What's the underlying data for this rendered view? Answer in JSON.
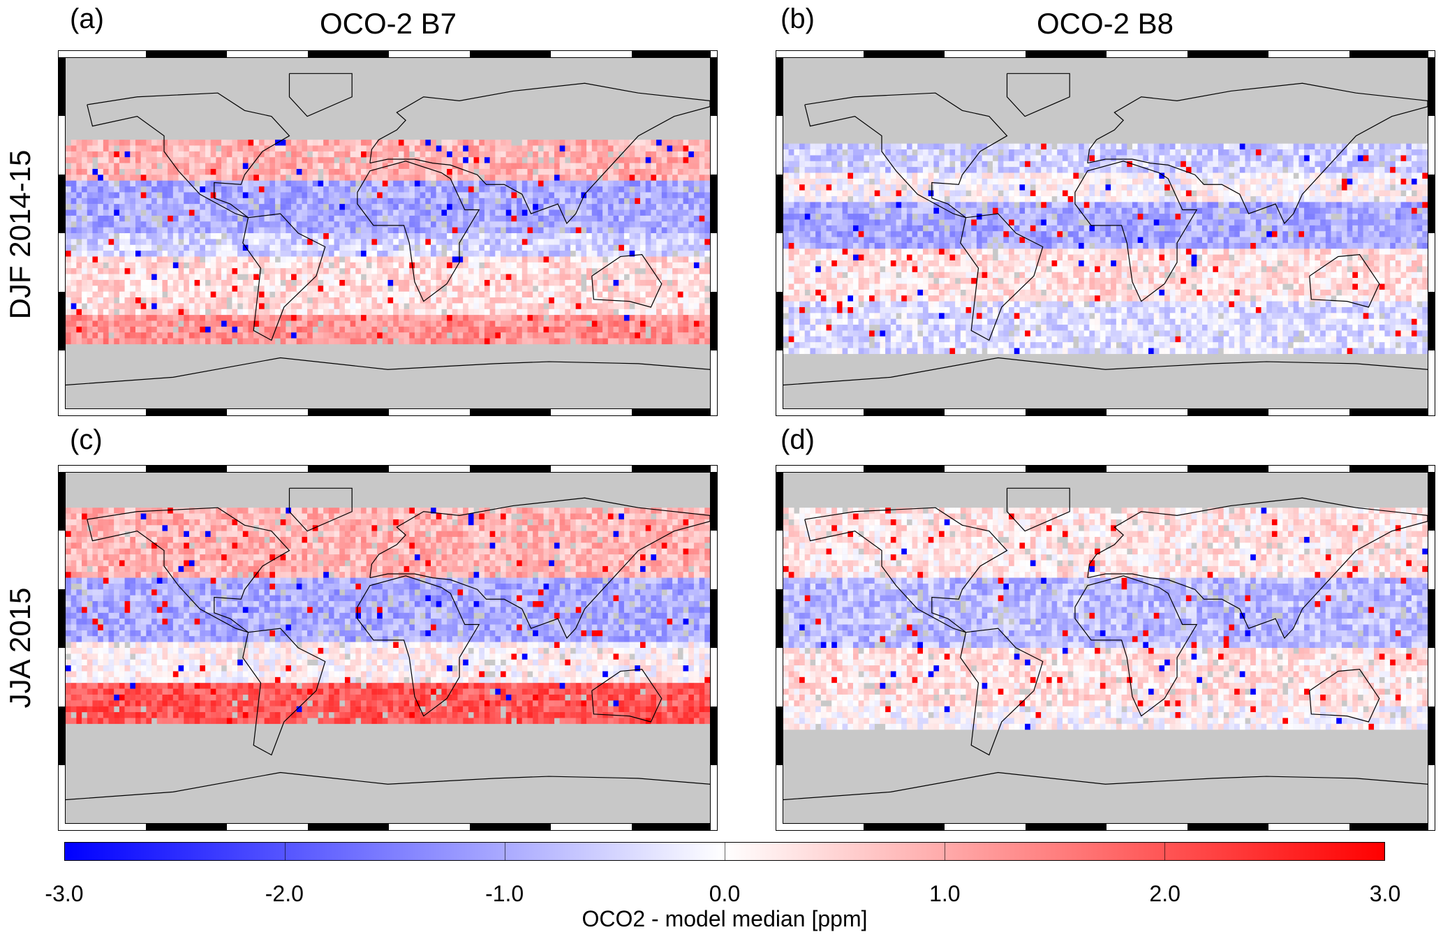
{
  "columns": [
    {
      "title": "OCO-2 B7"
    },
    {
      "title": "OCO-2 B8"
    }
  ],
  "rows": [
    {
      "label": "DJF 2014-15"
    },
    {
      "label": "JJA 2015"
    }
  ],
  "panels": [
    {
      "label": "(a)",
      "band": "B7",
      "season": "DJF 2014-15"
    },
    {
      "label": "(b)",
      "band": "B8",
      "season": "DJF 2014-15"
    },
    {
      "label": "(c)",
      "band": "B7",
      "season": "JJA 2015"
    },
    {
      "label": "(d)",
      "band": "B8",
      "season": "JJA 2015"
    }
  ],
  "colorbar": {
    "label": "OCO2 - model median [ppm]",
    "range": [
      -3.0,
      3.0
    ],
    "ticks": [
      "-3.0",
      "-2.0",
      "-1.0",
      "0.0",
      "1.0",
      "2.0",
      "3.0"
    ],
    "colors": {
      "min": "#0000ff",
      "mid": "#ffffff",
      "max": "#ff0000",
      "missing": "#c8c8c8"
    }
  }
}
